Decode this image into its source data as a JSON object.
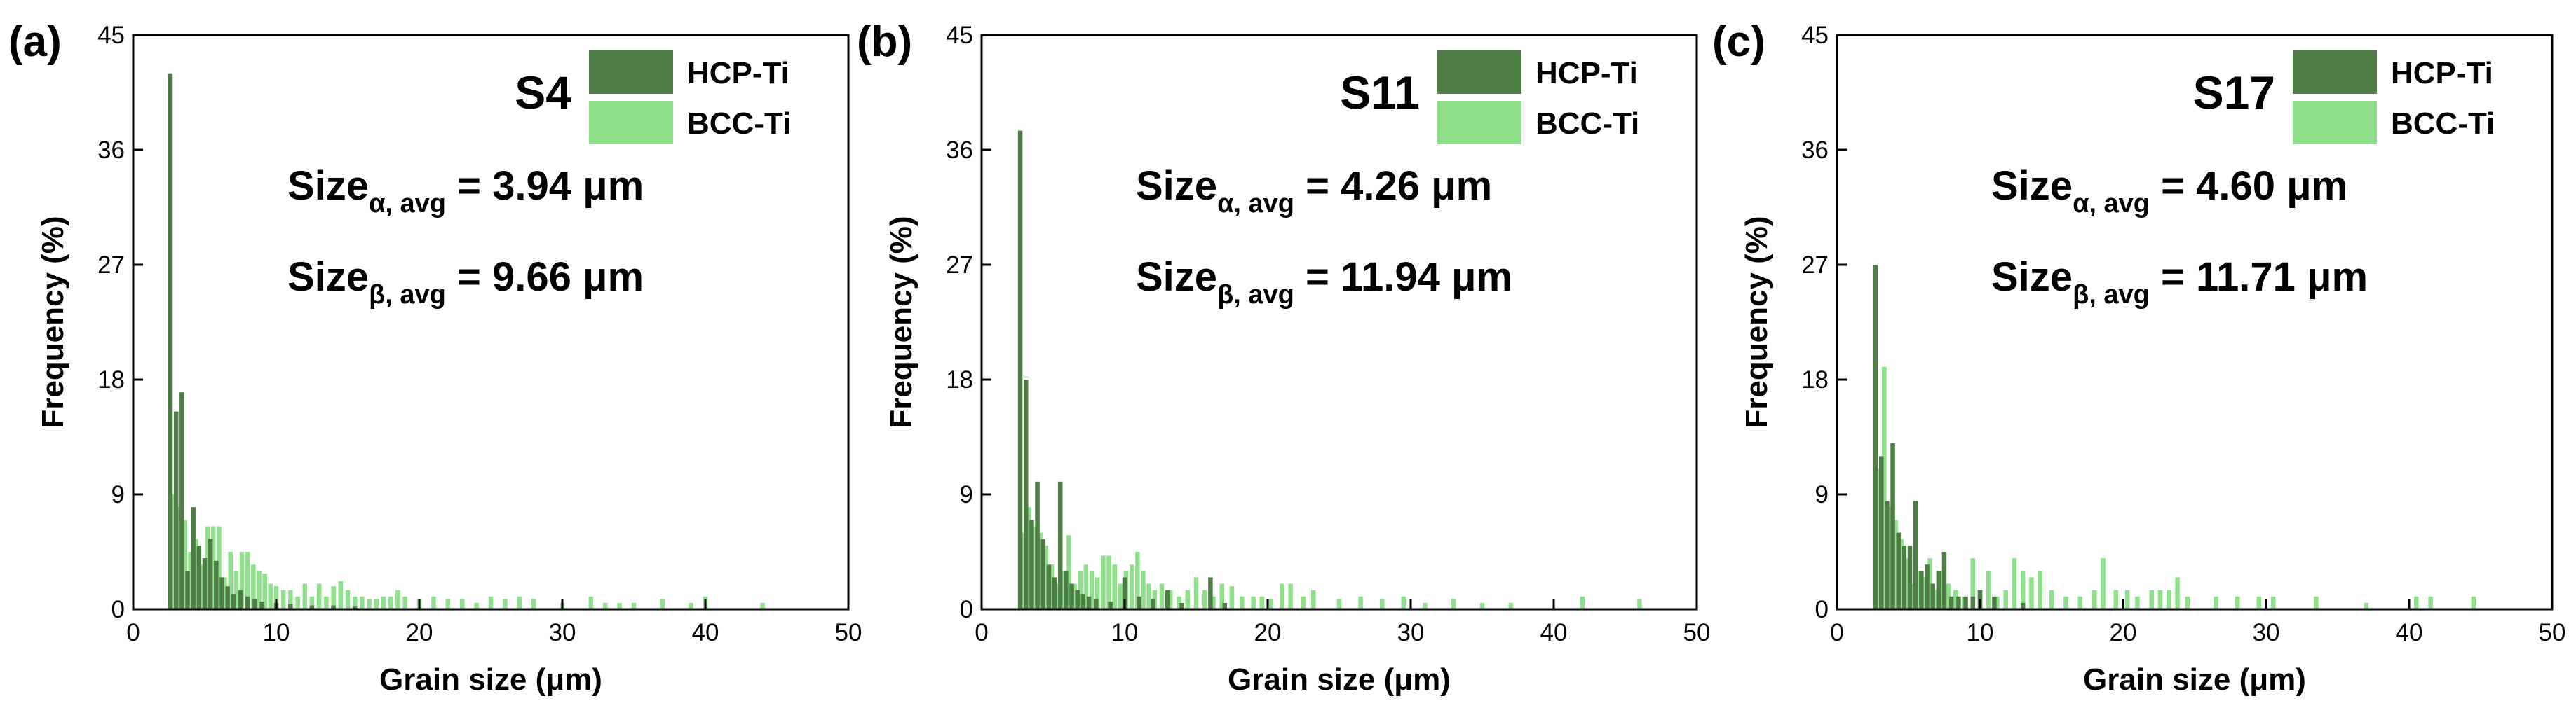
{
  "chart_data": [
    {
      "type": "bar",
      "panel_letter": "(a)",
      "sample": "S4",
      "xlabel": "Grain size (μm)",
      "ylabel": "Frequency (%)",
      "xlim": [
        0,
        50
      ],
      "ylim": [
        0,
        45
      ],
      "xticks": [
        "0",
        "10",
        "20",
        "30",
        "40",
        "50"
      ],
      "yticks": [
        "0",
        "9",
        "18",
        "27",
        "36",
        "45"
      ],
      "legend": {
        "position": "top-right",
        "entries": [
          "HCP-Ti",
          "BCC-Ti"
        ]
      },
      "annotations": [
        {
          "main": "Size",
          "sub": "α, avg",
          "value": " = 3.94 μm"
        },
        {
          "main": "Size",
          "sub": "β, avg",
          "value": " = 9.66 μm"
        }
      ],
      "series": [
        {
          "name": "HCP-Ti",
          "color": "#4e7c45",
          "points": [
            [
              2.6,
              42
            ],
            [
              3.0,
              15.5
            ],
            [
              3.4,
              17
            ],
            [
              3.8,
              3
            ],
            [
              4.2,
              8
            ],
            [
              4.6,
              5
            ],
            [
              5.0,
              4
            ],
            [
              5.4,
              5.5
            ],
            [
              5.8,
              3.8
            ],
            [
              6.2,
              2.5
            ],
            [
              6.6,
              1.8
            ],
            [
              7.0,
              1.2
            ],
            [
              7.5,
              1.5
            ],
            [
              8.0,
              1
            ],
            [
              8.5,
              0.8
            ],
            [
              9.0,
              0.6
            ],
            [
              10.0,
              0.5
            ],
            [
              11.0,
              0.4
            ],
            [
              12.5,
              0.3
            ],
            [
              14.0,
              0.3
            ],
            [
              15.5,
              0.2
            ]
          ]
        },
        {
          "name": "BCC-Ti",
          "color": "#8fe08a",
          "points": [
            [
              2.8,
              9
            ],
            [
              3.2,
              8
            ],
            [
              3.6,
              7
            ],
            [
              4.0,
              4.5
            ],
            [
              4.4,
              5.5
            ],
            [
              4.8,
              3.5
            ],
            [
              5.2,
              6.5
            ],
            [
              5.6,
              6.5
            ],
            [
              6.0,
              6.5
            ],
            [
              6.4,
              2.5
            ],
            [
              6.8,
              4.5
            ],
            [
              7.2,
              3
            ],
            [
              7.6,
              4.5
            ],
            [
              8.0,
              4.5
            ],
            [
              8.4,
              3.5
            ],
            [
              8.8,
              3
            ],
            [
              9.2,
              2.8
            ],
            [
              9.6,
              2
            ],
            [
              10.0,
              1.8
            ],
            [
              10.5,
              1.5
            ],
            [
              11.0,
              1.5
            ],
            [
              11.5,
              1
            ],
            [
              12.0,
              2
            ],
            [
              12.5,
              1
            ],
            [
              13.0,
              2
            ],
            [
              13.5,
              1
            ],
            [
              14.0,
              1.8
            ],
            [
              14.5,
              2.2
            ],
            [
              15.0,
              1.5
            ],
            [
              15.5,
              1
            ],
            [
              16.0,
              1
            ],
            [
              16.5,
              0.8
            ],
            [
              17.0,
              0.8
            ],
            [
              17.5,
              1
            ],
            [
              18.0,
              1
            ],
            [
              18.5,
              1.5
            ],
            [
              19.0,
              1
            ],
            [
              20.0,
              0.8
            ],
            [
              21.0,
              1
            ],
            [
              22.0,
              0.8
            ],
            [
              23.0,
              0.8
            ],
            [
              24.0,
              0.5
            ],
            [
              25.0,
              1
            ],
            [
              26.0,
              0.8
            ],
            [
              27.0,
              1
            ],
            [
              28.0,
              0.8
            ],
            [
              30.0,
              0.5
            ],
            [
              32.0,
              1
            ],
            [
              33.0,
              0.5
            ],
            [
              34.0,
              0.5
            ],
            [
              35.0,
              0.5
            ],
            [
              37.0,
              0.8
            ],
            [
              39.0,
              0.5
            ],
            [
              40.0,
              1
            ],
            [
              44.0,
              0.5
            ]
          ]
        }
      ]
    },
    {
      "type": "bar",
      "panel_letter": "(b)",
      "sample": "S11",
      "xlabel": "Grain size (μm)",
      "ylabel": "Frequency (%)",
      "xlim": [
        0,
        50
      ],
      "ylim": [
        0,
        45
      ],
      "xticks": [
        "0",
        "10",
        "20",
        "30",
        "40",
        "50"
      ],
      "yticks": [
        "0",
        "9",
        "18",
        "27",
        "36",
        "45"
      ],
      "legend": {
        "position": "top-right",
        "entries": [
          "HCP-Ti",
          "BCC-Ti"
        ]
      },
      "annotations": [
        {
          "main": "Size",
          "sub": "α, avg",
          "value": " = 4.26 μm"
        },
        {
          "main": "Size",
          "sub": "β, avg",
          "value": " = 11.94 μm"
        }
      ],
      "series": [
        {
          "name": "HCP-Ti",
          "color": "#4e7c45",
          "points": [
            [
              2.7,
              37.5
            ],
            [
              3.1,
              18
            ],
            [
              3.5,
              7
            ],
            [
              3.9,
              10
            ],
            [
              4.3,
              5.5
            ],
            [
              4.7,
              3.5
            ],
            [
              5.1,
              2.5
            ],
            [
              5.5,
              10
            ],
            [
              5.9,
              3
            ],
            [
              6.3,
              2
            ],
            [
              6.7,
              1.5
            ],
            [
              7.1,
              1.2
            ],
            [
              7.5,
              1
            ],
            [
              8.0,
              0.8
            ],
            [
              9.0,
              0.6
            ],
            [
              10.0,
              2.5
            ],
            [
              11.0,
              1
            ],
            [
              12.0,
              0.8
            ],
            [
              13.0,
              1.5
            ],
            [
              14.0,
              0.5
            ],
            [
              16.0,
              2.5
            ],
            [
              17.0,
              0.5
            ]
          ]
        },
        {
          "name": "BCC-Ti",
          "color": "#8fe08a",
          "points": [
            [
              2.9,
              6
            ],
            [
              3.3,
              8
            ],
            [
              3.7,
              6.5
            ],
            [
              4.1,
              6
            ],
            [
              4.5,
              5
            ],
            [
              4.9,
              3.5
            ],
            [
              5.3,
              2
            ],
            [
              5.7,
              3
            ],
            [
              6.1,
              5.8
            ],
            [
              6.5,
              2
            ],
            [
              6.9,
              3
            ],
            [
              7.3,
              3.5
            ],
            [
              7.7,
              3
            ],
            [
              8.1,
              2.5
            ],
            [
              8.5,
              4.2
            ],
            [
              8.9,
              4.2
            ],
            [
              9.3,
              3.5
            ],
            [
              9.7,
              2
            ],
            [
              10.1,
              3
            ],
            [
              10.5,
              3.5
            ],
            [
              10.9,
              4.5
            ],
            [
              11.3,
              3
            ],
            [
              11.7,
              2
            ],
            [
              12.1,
              1.5
            ],
            [
              12.6,
              2
            ],
            [
              13.2,
              1.5
            ],
            [
              13.8,
              1
            ],
            [
              14.4,
              1.5
            ],
            [
              15.0,
              2.5
            ],
            [
              15.6,
              1.5
            ],
            [
              16.2,
              1
            ],
            [
              16.8,
              2
            ],
            [
              17.5,
              1.8
            ],
            [
              18.2,
              1
            ],
            [
              19.0,
              1
            ],
            [
              19.6,
              1
            ],
            [
              20.2,
              0.8
            ],
            [
              21.0,
              2
            ],
            [
              21.6,
              2
            ],
            [
              22.5,
              1
            ],
            [
              23.2,
              1.5
            ],
            [
              25.0,
              0.8
            ],
            [
              26.5,
              1
            ],
            [
              28.0,
              0.8
            ],
            [
              29.5,
              1
            ],
            [
              31.0,
              0.5
            ],
            [
              33.0,
              0.8
            ],
            [
              35.0,
              0.5
            ],
            [
              37.0,
              0.5
            ],
            [
              42.0,
              1
            ],
            [
              46.0,
              0.8
            ]
          ]
        }
      ]
    },
    {
      "type": "bar",
      "panel_letter": "(c)",
      "sample": "S17",
      "xlabel": "Grain size (μm)",
      "ylabel": "Frequency (%)",
      "xlim": [
        0,
        50
      ],
      "ylim": [
        0,
        45
      ],
      "xticks": [
        "0",
        "10",
        "20",
        "30",
        "40",
        "50"
      ],
      "yticks": [
        "0",
        "9",
        "18",
        "27",
        "36",
        "45"
      ],
      "legend": {
        "position": "top-right",
        "entries": [
          "HCP-Ti",
          "BCC-Ti"
        ]
      },
      "annotations": [
        {
          "main": "Size",
          "sub": "α, avg",
          "value": " = 4.60 μm"
        },
        {
          "main": "Size",
          "sub": "β, avg",
          "value": " = 11.71 μm"
        }
      ],
      "series": [
        {
          "name": "HCP-Ti",
          "color": "#4e7c45",
          "points": [
            [
              2.7,
              27
            ],
            [
              3.1,
              12
            ],
            [
              3.5,
              8.5
            ],
            [
              3.9,
              13
            ],
            [
              4.3,
              6
            ],
            [
              4.7,
              5
            ],
            [
              5.1,
              5
            ],
            [
              5.5,
              8.5
            ],
            [
              5.9,
              3
            ],
            [
              6.3,
              3.5
            ],
            [
              6.7,
              2
            ],
            [
              7.1,
              3
            ],
            [
              7.5,
              4.5
            ],
            [
              8.0,
              1
            ],
            [
              8.5,
              1
            ],
            [
              9.0,
              1
            ],
            [
              9.5,
              1
            ],
            [
              10.0,
              1.5
            ],
            [
              11.0,
              1
            ],
            [
              13.0,
              0.5
            ]
          ]
        },
        {
          "name": "BCC-Ti",
          "color": "#8fe08a",
          "points": [
            [
              2.9,
              11
            ],
            [
              3.3,
              19
            ],
            [
              3.7,
              8
            ],
            [
              4.1,
              7
            ],
            [
              4.5,
              5.5
            ],
            [
              4.9,
              4
            ],
            [
              5.3,
              2
            ],
            [
              5.7,
              3
            ],
            [
              6.1,
              2.5
            ],
            [
              6.5,
              4
            ],
            [
              6.9,
              1.5
            ],
            [
              7.3,
              3
            ],
            [
              7.8,
              2
            ],
            [
              8.3,
              1.5
            ],
            [
              8.9,
              1
            ],
            [
              9.5,
              4
            ],
            [
              10.0,
              1.5
            ],
            [
              10.6,
              3
            ],
            [
              11.2,
              1
            ],
            [
              11.8,
              1.5
            ],
            [
              12.4,
              4
            ],
            [
              13.0,
              3
            ],
            [
              13.6,
              2.5
            ],
            [
              14.2,
              3
            ],
            [
              15.0,
              1.5
            ],
            [
              16.0,
              1
            ],
            [
              17.0,
              1
            ],
            [
              18.0,
              1.5
            ],
            [
              18.6,
              4
            ],
            [
              19.5,
              1.5
            ],
            [
              20.3,
              1.5
            ],
            [
              21.0,
              1
            ],
            [
              22.0,
              1.5
            ],
            [
              22.6,
              1.5
            ],
            [
              23.2,
              1.5
            ],
            [
              23.8,
              2.5
            ],
            [
              24.5,
              1
            ],
            [
              26.5,
              1
            ],
            [
              28.0,
              1
            ],
            [
              29.5,
              1
            ],
            [
              30.5,
              1
            ],
            [
              33.5,
              1
            ],
            [
              37.0,
              0.5
            ],
            [
              40.5,
              1
            ],
            [
              41.5,
              1
            ],
            [
              44.5,
              1
            ]
          ]
        }
      ]
    }
  ]
}
